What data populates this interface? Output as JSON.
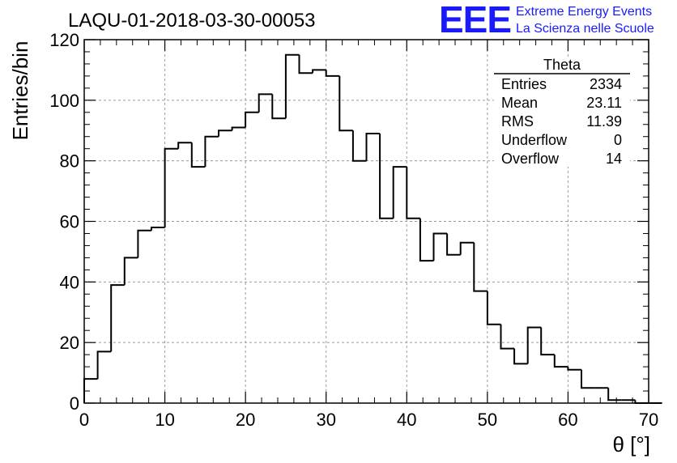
{
  "chart_data": {
    "type": "bar",
    "title": "LAQU-01-2018-03-30-00053",
    "xlabel": "θ [°]",
    "ylabel": "Entries/bin",
    "xlim": [
      0,
      70
    ],
    "ylim": [
      0,
      120
    ],
    "grid": true,
    "x_ticks": [
      0,
      10,
      20,
      30,
      40,
      50,
      60,
      70
    ],
    "y_ticks": [
      0,
      20,
      40,
      60,
      80,
      100,
      120
    ],
    "bin_width": 1.6667,
    "values": [
      8,
      17,
      39,
      48,
      57,
      58,
      84,
      86,
      78,
      88,
      90,
      91,
      96,
      102,
      94,
      115,
      109,
      110,
      108,
      90,
      80,
      89,
      61,
      78,
      61,
      47,
      56,
      49,
      53,
      37,
      26,
      18,
      13,
      25,
      16,
      12,
      11,
      5,
      5,
      1,
      1,
      0,
      0
    ]
  },
  "stats_box": {
    "name": "Theta",
    "rows": [
      {
        "label": "Entries",
        "value": "2334"
      },
      {
        "label": "Mean",
        "value": "23.11"
      },
      {
        "label": "RMS",
        "value": "11.39"
      },
      {
        "label": "Underflow",
        "value": "0"
      },
      {
        "label": "Overflow",
        "value": "14"
      }
    ]
  },
  "logo": {
    "mark": "EEE",
    "line1": "Extreme Energy Events",
    "line2": "La Scienza nelle Scuole",
    "color": "#1a1aff"
  }
}
